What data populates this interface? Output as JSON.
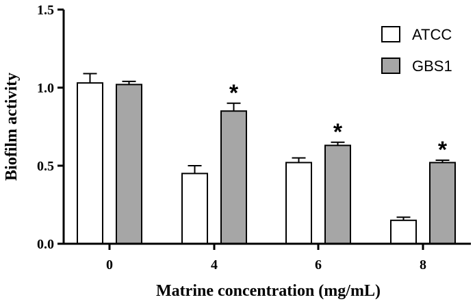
{
  "chart_data": {
    "type": "bar",
    "title": "",
    "xlabel": "Matrine concentration (mg/mL)",
    "ylabel": "Biofilm activity",
    "categories": [
      "0",
      "4",
      "6",
      "8"
    ],
    "ylim": [
      0,
      1.5
    ],
    "yticks": [
      "0.0",
      "0.5",
      "1.0",
      "1.5"
    ],
    "grid": false,
    "legend_position": "top-right",
    "series": [
      {
        "name": "ATCC",
        "color": "#ffffff",
        "values": [
          1.03,
          0.45,
          0.52,
          0.15
        ],
        "errors": [
          0.06,
          0.05,
          0.03,
          0.02
        ],
        "significant": [
          false,
          false,
          false,
          false
        ]
      },
      {
        "name": "GBS1",
        "color": "#a6a6a6",
        "values": [
          1.02,
          0.85,
          0.63,
          0.52
        ],
        "errors": [
          0.02,
          0.05,
          0.02,
          0.015
        ],
        "significant": [
          false,
          true,
          true,
          true
        ]
      }
    ],
    "significance_marker": "*"
  }
}
